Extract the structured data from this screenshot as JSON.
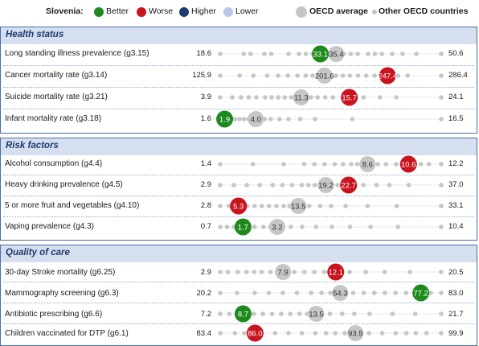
{
  "legend": {
    "title": "Slovenia:",
    "items": [
      {
        "label": "Better",
        "color": "#1e8a1e"
      },
      {
        "label": "Worse",
        "color": "#c8141e"
      },
      {
        "label": "Higher",
        "color": "#1f3a6e"
      },
      {
        "label": "Lower",
        "color": "#b8c8e6"
      }
    ],
    "oecd_average": "OECD average",
    "other_countries": "Other OECD countries"
  },
  "colors": {
    "better": "#1e8a1e",
    "worse": "#c8141e",
    "oecd": "#c6c6c6",
    "other": "#c6c6c6",
    "panel_header": "#d5dff0",
    "panel_title": "#1f3a6e"
  },
  "chart_data": {
    "type": "scatter",
    "title": "",
    "panels": [
      {
        "title": "Health status",
        "rows": [
          {
            "label": "Long standing illness prevalence (g3.15)",
            "min": "18.6",
            "max": "50.6",
            "min_value": 18.6,
            "max_value": 50.6,
            "slovenia": 33.1,
            "slovenia_label": "33.1",
            "status": "better",
            "oecd": 35.4,
            "oecd_label": "35.4",
            "others": [
              22.0,
              23.0,
              25.0,
              26.0,
              28.5,
              30.0,
              31.0,
              32.0,
              34.0,
              36.5,
              37.5,
              38.5,
              40.0,
              41.0,
              42.0,
              43.5,
              45.0,
              47.0
            ]
          },
          {
            "label": "Cancer mortality rate (g3.14)",
            "min": "125.9",
            "max": "286.4",
            "min_value": 125.9,
            "max_value": 286.4,
            "slovenia": 247.4,
            "slovenia_label": "247.4",
            "status": "worse",
            "oecd": 201.6,
            "oecd_label": "201.6",
            "others": [
              140.0,
              150.0,
              160.0,
              168.0,
              175.0,
              182.0,
              188.0,
              193.0,
              197.0,
              206.0,
              210.0,
              215.0,
              220.0,
              226.0,
              232.0,
              238.0,
              255.0,
              262.0
            ]
          },
          {
            "label": "Suicide mortality rate (g3.21)",
            "min": "3.9",
            "max": "24.1",
            "min_value": 3.9,
            "max_value": 24.1,
            "slovenia": 15.7,
            "slovenia_label": "15.7",
            "status": "worse",
            "oecd": 11.3,
            "oecd_label": "11.3",
            "others": [
              5.0,
              5.8,
              6.5,
              7.2,
              8.0,
              8.6,
              9.2,
              9.8,
              10.4,
              12.2,
              12.8,
              13.5,
              14.2,
              17.0,
              18.5,
              20.0
            ]
          },
          {
            "label": "Infant mortality rate (g3.18)",
            "min": "1.6",
            "max": "16.5",
            "min_value": 1.6,
            "max_value": 16.5,
            "slovenia": 1.9,
            "slovenia_label": "1.9",
            "status": "better",
            "oecd": 4.0,
            "oecd_label": "4.0",
            "others": [
              2.3,
              2.6,
              2.9,
              3.2,
              3.5,
              4.6,
              5.0,
              5.6,
              6.2,
              7.0,
              8.0,
              10.5
            ]
          }
        ]
      },
      {
        "title": "Risk factors",
        "rows": [
          {
            "label": "Alcohol consumption (g4.4)",
            "min": "1.4",
            "max": "12.2",
            "min_value": 1.4,
            "max_value": 12.2,
            "slovenia": 10.6,
            "slovenia_label": "10.6",
            "status": "worse",
            "oecd": 8.6,
            "oecd_label": "8.6",
            "others": [
              3.0,
              4.5,
              5.5,
              6.0,
              6.5,
              7.0,
              7.4,
              7.8,
              8.1,
              9.1,
              9.5,
              10.0,
              11.2,
              11.6
            ]
          },
          {
            "label": "Heavy drinking prevalence (g4.5)",
            "min": "2.9",
            "max": "37.0",
            "min_value": 2.9,
            "max_value": 37.0,
            "slovenia": 22.7,
            "slovenia_label": "22.7",
            "status": "worse",
            "oecd": 19.2,
            "oecd_label": "19.2",
            "others": [
              5.0,
              7.0,
              9.0,
              11.0,
              12.5,
              14.0,
              15.5,
              16.5,
              17.5,
              21.0,
              25.0,
              27.0,
              29.0,
              32.0
            ]
          },
          {
            "label": "5 or more fruit and vegetables (g4.10)",
            "min": "2.8",
            "max": "33.1",
            "min_value": 2.8,
            "max_value": 33.1,
            "slovenia": 5.3,
            "slovenia_label": "5.3",
            "status": "worse",
            "oecd": 13.5,
            "oecd_label": "13.5",
            "others": [
              4.0,
              6.5,
              7.5,
              8.5,
              9.5,
              10.5,
              11.5,
              12.3,
              15.0,
              16.5,
              18.0,
              20.0,
              23.0,
              27.0
            ]
          },
          {
            "label": "Vaping prevalence (g4.3)",
            "min": "0.7",
            "max": "10.4",
            "min_value": 0.7,
            "max_value": 10.4,
            "slovenia": 1.7,
            "slovenia_label": "1.7",
            "status": "better",
            "oecd": 3.2,
            "oecd_label": "3.2",
            "others": [
              1.0,
              1.3,
              2.2,
              2.6,
              2.9,
              3.8,
              4.3,
              4.9,
              5.6,
              6.4,
              7.3,
              8.5
            ]
          }
        ]
      },
      {
        "title": "Quality of care",
        "rows": [
          {
            "label": "30-day Stroke mortality (g6.25)",
            "min": "2.9",
            "max": "20.5",
            "min_value": 2.9,
            "max_value": 20.5,
            "slovenia": 12.1,
            "slovenia_label": "12.1",
            "status": "worse",
            "oecd": 7.9,
            "oecd_label": "7.9",
            "others": [
              3.5,
              4.3,
              5.0,
              5.6,
              6.2,
              6.9,
              8.8,
              9.6,
              10.4,
              11.2,
              13.2,
              14.5,
              16.0,
              18.0
            ]
          },
          {
            "label": "Mammography screening (g6.3)",
            "min": "20.2",
            "max": "83.0",
            "min_value": 20.2,
            "max_value": 83.0,
            "slovenia": 77.2,
            "slovenia_label": "77.2",
            "status": "better",
            "oecd": 54.3,
            "oecd_label": "54.3",
            "others": [
              25.0,
              30.0,
              34.0,
              38.0,
              42.0,
              46.0,
              49.0,
              51.5,
              58.0,
              61.0,
              64.0,
              67.0,
              70.0,
              73.0,
              80.0
            ]
          },
          {
            "label": "Antibiotic prescribing (g6.6)",
            "min": "7.2",
            "max": "21.7",
            "min_value": 7.2,
            "max_value": 21.7,
            "slovenia": 8.7,
            "slovenia_label": "8.7",
            "status": "better",
            "oecd": 13.5,
            "oecd_label": "13.5",
            "others": [
              7.8,
              9.4,
              10.0,
              10.6,
              11.2,
              11.8,
              12.4,
              12.9,
              14.4,
              15.2,
              16.0,
              17.0,
              18.5,
              20.0
            ]
          },
          {
            "label": "Children vaccinated for DTP (g6.1)",
            "min": "83.4",
            "max": "99.9",
            "min_value": 83.4,
            "max_value": 99.9,
            "slovenia": 86.0,
            "slovenia_label": "86.0",
            "status": "worse",
            "oecd": 93.5,
            "oecd_label": "93.5",
            "others": [
              84.5,
              85.2,
              87.5,
              88.5,
              89.5,
              90.5,
              91.3,
              92.0,
              92.7,
              94.5,
              95.5,
              96.5,
              97.3,
              98.0,
              98.8
            ]
          }
        ]
      }
    ]
  }
}
